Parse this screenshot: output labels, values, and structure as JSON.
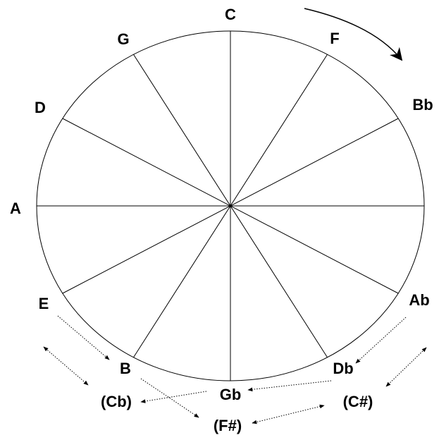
{
  "nodes": [
    {
      "label": "C"
    },
    {
      "label": "F"
    },
    {
      "label": "Bb"
    },
    {
      "label": "Ab"
    },
    {
      "label": "Db"
    },
    {
      "label": "Gb"
    },
    {
      "label": "B"
    },
    {
      "label": "E"
    },
    {
      "label": "A"
    },
    {
      "label": "D"
    },
    {
      "label": "G"
    }
  ],
  "enharmonics": [
    {
      "label": "(Cb)"
    },
    {
      "label": "(F#)"
    },
    {
      "label": "(C#)"
    }
  ]
}
